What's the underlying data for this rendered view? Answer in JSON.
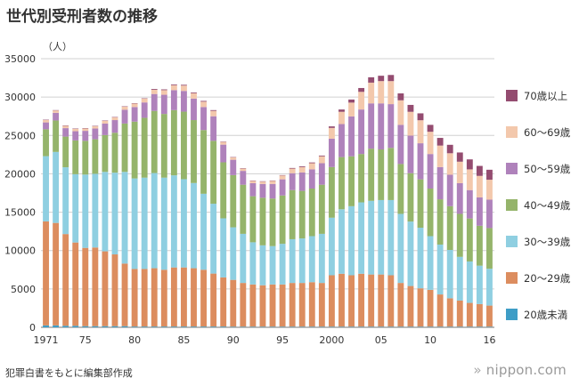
{
  "page": {
    "title": "世代別受刑者数の推移",
    "source": "犯罪白書をもとに編集部作成",
    "brand": "nippon.com",
    "brand_mark": "»"
  },
  "chart_data": {
    "type": "bar",
    "stacked": true,
    "title": "世代別受刑者数の推移",
    "ylabel": "（人）",
    "xlabel": "",
    "ylim": [
      0,
      35000
    ],
    "yticks": [
      0,
      5000,
      10000,
      15000,
      20000,
      25000,
      30000,
      35000
    ],
    "grid": true,
    "legend_position": "right",
    "x": [
      1971,
      1972,
      1973,
      1974,
      1975,
      1976,
      1977,
      1978,
      1979,
      1980,
      1981,
      1982,
      1983,
      1984,
      1985,
      1986,
      1987,
      1988,
      1989,
      1990,
      1991,
      1992,
      1993,
      1994,
      1995,
      1996,
      1997,
      1998,
      1999,
      2000,
      2001,
      2002,
      2003,
      2004,
      2005,
      2006,
      2007,
      2008,
      2009,
      2010,
      2011,
      2012,
      2013,
      2014,
      2015,
      2016
    ],
    "x_tick_labels": [
      {
        "year": 1971,
        "label": "1971"
      },
      {
        "year": 1975,
        "label": "75"
      },
      {
        "year": 1980,
        "label": "80"
      },
      {
        "year": 1985,
        "label": "85"
      },
      {
        "year": 1990,
        "label": "90"
      },
      {
        "year": 1995,
        "label": "95"
      },
      {
        "year": 2000,
        "label": "2000"
      },
      {
        "year": 2005,
        "label": "05"
      },
      {
        "year": 2010,
        "label": "10"
      },
      {
        "year": 2016,
        "label": "16"
      }
    ],
    "series": [
      {
        "name": "20歳未満",
        "color": "#3e9dc6",
        "values": [
          250,
          250,
          200,
          200,
          150,
          150,
          150,
          150,
          150,
          100,
          100,
          100,
          100,
          100,
          100,
          100,
          100,
          100,
          100,
          80,
          80,
          80,
          80,
          80,
          80,
          80,
          80,
          80,
          80,
          80,
          80,
          80,
          80,
          80,
          80,
          80,
          80,
          80,
          80,
          80,
          80,
          80,
          80,
          80,
          80,
          80
        ]
      },
      {
        "name": "20〜29歳",
        "color": "#dc8d5f",
        "values": [
          13550,
          13350,
          11950,
          10850,
          10200,
          10250,
          9750,
          9350,
          8150,
          7500,
          7500,
          7600,
          7400,
          7700,
          7700,
          7600,
          7400,
          6900,
          6400,
          6100,
          5700,
          5500,
          5400,
          5500,
          5500,
          5700,
          5700,
          5800,
          5700,
          6700,
          6900,
          6700,
          6900,
          6800,
          6800,
          6700,
          5700,
          5300,
          5000,
          4800,
          4200,
          3700,
          3400,
          3100,
          2950,
          2750
        ]
      },
      {
        "name": "30〜39歳",
        "color": "#8fcfe1",
        "values": [
          8500,
          9250,
          8700,
          8900,
          9550,
          9600,
          10350,
          10650,
          11950,
          11800,
          11900,
          12400,
          12000,
          12000,
          11500,
          11100,
          9900,
          9100,
          7700,
          6850,
          6400,
          5500,
          5200,
          5000,
          5300,
          5700,
          5800,
          6000,
          6400,
          7500,
          8400,
          9000,
          9300,
          9600,
          9700,
          9800,
          9000,
          8400,
          7900,
          7000,
          6500,
          6300,
          5700,
          5400,
          5000,
          4800
        ]
      },
      {
        "name": "40〜49歳",
        "color": "#95b46b",
        "values": [
          3500,
          4100,
          4000,
          4400,
          4400,
          4500,
          4800,
          5200,
          6300,
          7400,
          7800,
          8100,
          8300,
          8500,
          8800,
          8200,
          8300,
          8200,
          7300,
          6800,
          6400,
          6000,
          6200,
          6200,
          6300,
          6400,
          6200,
          6200,
          6400,
          6600,
          6800,
          6500,
          6300,
          6800,
          6600,
          6800,
          6500,
          6300,
          6300,
          6200,
          5900,
          5700,
          5600,
          5600,
          5200,
          5300
        ]
      },
      {
        "name": "50〜59歳",
        "color": "#af82bb",
        "values": [
          900,
          1000,
          1100,
          1200,
          1300,
          1400,
          1500,
          1650,
          1800,
          1900,
          2000,
          2200,
          2500,
          2600,
          2700,
          2800,
          3000,
          3200,
          2300,
          2000,
          1800,
          1700,
          1800,
          1900,
          2100,
          2200,
          2400,
          2500,
          2800,
          3700,
          4300,
          5200,
          5800,
          5900,
          6000,
          5700,
          5100,
          4900,
          4700,
          4500,
          4200,
          4100,
          4000,
          3700,
          3700,
          3700
        ]
      },
      {
        "name": "60〜69歳",
        "color": "#f3c8ac",
        "values": [
          300,
          300,
          300,
          300,
          300,
          300,
          350,
          350,
          400,
          450,
          500,
          550,
          600,
          650,
          700,
          700,
          700,
          700,
          350,
          300,
          300,
          300,
          300,
          400,
          500,
          600,
          700,
          800,
          900,
          1400,
          1600,
          1800,
          2300,
          2700,
          2900,
          3000,
          3200,
          3100,
          3000,
          2900,
          2800,
          2800,
          2800,
          2700,
          2800,
          2600
        ]
      },
      {
        "name": "70歳以上",
        "color": "#944c70",
        "values": [
          50,
          50,
          50,
          50,
          50,
          50,
          50,
          50,
          50,
          50,
          50,
          100,
          100,
          100,
          100,
          100,
          100,
          100,
          50,
          50,
          50,
          50,
          50,
          50,
          50,
          80,
          100,
          100,
          100,
          200,
          300,
          400,
          500,
          700,
          700,
          800,
          900,
          900,
          900,
          900,
          1000,
          1100,
          1200,
          1300,
          1300,
          1300
        ]
      }
    ]
  }
}
